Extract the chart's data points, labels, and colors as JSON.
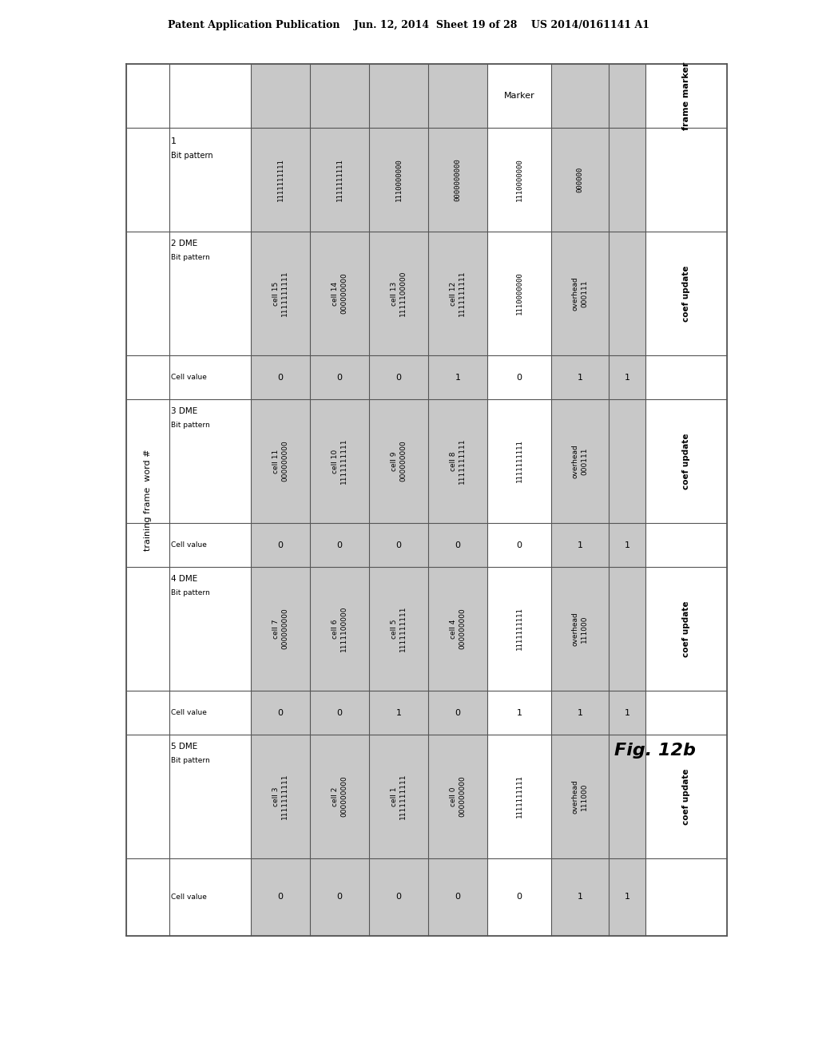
{
  "page_header": "Patent Application Publication    Jun. 12, 2014  Sheet 19 of 28    US 2014/0161141 A1",
  "fig_label": "Fig. 12b",
  "bg_color": "#ffffff",
  "shaded_color": "#c8c8c8",
  "border_color": "#555555",
  "text_color": "#000000",
  "groups": [
    {
      "id": "1",
      "rows": [
        {
          "label": "Bit pattern",
          "cells": [
            "1111111111",
            "1111111111",
            "1110000000",
            "0000000000"
          ],
          "marker": "1110000000",
          "overhead": "000000",
          "extra": "",
          "frame": ""
        }
      ]
    },
    {
      "id": "2 DME",
      "rows": [
        {
          "label": "Bit pattern",
          "cell_names": [
            "cell 15",
            "cell 14",
            "cell 13",
            "cell 12"
          ],
          "cells": [
            "1111111111",
            "000000000",
            "1111100000",
            "1111111111"
          ],
          "marker": "1110000000",
          "overhead_name": "overhead",
          "overhead": "000111",
          "extra": "",
          "frame": "coef update"
        },
        {
          "label": "Cell value",
          "cells": [
            "0",
            "0",
            "0",
            "1"
          ],
          "marker": "0",
          "overhead": "1",
          "extra": "1",
          "frame": ""
        }
      ]
    },
    {
      "id": "3 DME",
      "rows": [
        {
          "label": "Bit pattern",
          "cell_names": [
            "cell 11",
            "cell 10",
            "cell 9",
            "cell 8"
          ],
          "cells": [
            "000000000",
            "1111111111",
            "000000000",
            "1111111111"
          ],
          "marker": "1111111111",
          "overhead_name": "overhead",
          "overhead": "000111",
          "extra": "",
          "frame": "coef update"
        },
        {
          "label": "Cell value",
          "cells": [
            "0",
            "0",
            "0",
            "0"
          ],
          "marker": "0",
          "overhead": "1",
          "extra": "1",
          "frame": ""
        }
      ]
    },
    {
      "id": "4 DME",
      "rows": [
        {
          "label": "Bit pattern",
          "cell_names": [
            "cell 7",
            "cell 6",
            "cell 5",
            "cell 4"
          ],
          "cells": [
            "000000000",
            "1111100000",
            "1111111111",
            "000000000"
          ],
          "marker": "1111111111",
          "overhead_name": "overhead",
          "overhead": "111000",
          "extra": "",
          "frame": "coef update"
        },
        {
          "label": "Cell value",
          "cells": [
            "0",
            "0",
            "1",
            "0"
          ],
          "marker": "1",
          "overhead": "1",
          "extra": "1",
          "frame": ""
        }
      ]
    },
    {
      "id": "5 DME",
      "rows": [
        {
          "label": "Bit pattern",
          "cell_names": [
            "cell 3",
            "cell 2",
            "cell 1",
            "cell 0"
          ],
          "cells": [
            "1111111111",
            "000000000",
            "1111111111",
            "000000000"
          ],
          "marker": "1111111111",
          "overhead_name": "overhead",
          "overhead": "111000",
          "extra": "",
          "frame": "coef update"
        },
        {
          "label": "Cell value",
          "cells": [
            "0",
            "0",
            "0",
            "0"
          ],
          "marker": "0",
          "overhead": "1",
          "extra": "1",
          "frame": ""
        }
      ]
    }
  ]
}
